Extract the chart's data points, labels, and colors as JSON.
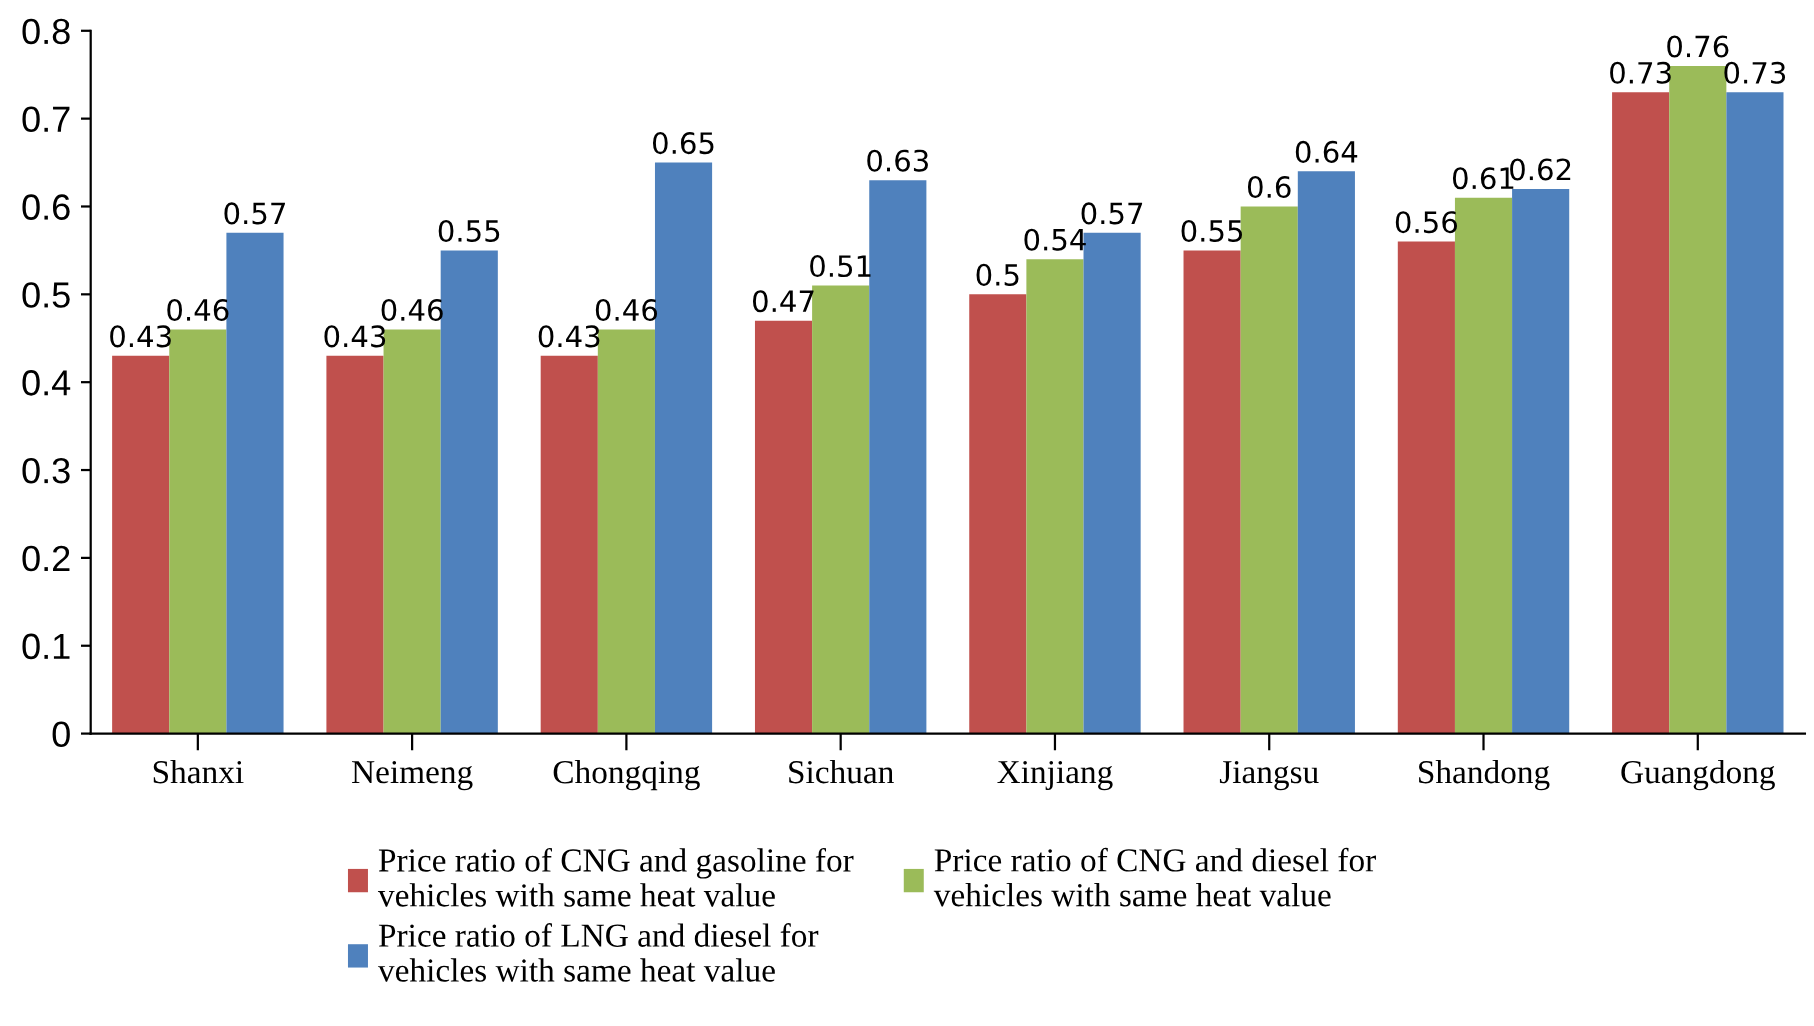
{
  "chart_data": {
    "type": "bar",
    "categories": [
      "Shanxi",
      "Neimeng",
      "Chongqing",
      "Sichuan",
      "Xinjiang",
      "Jiangsu",
      "Shandong",
      "Guangdong"
    ],
    "series": [
      {
        "name": "Price ratio of CNG and gasoline for\nvehicles with same heat value",
        "color": "#c0504d",
        "values": [
          0.43,
          0.43,
          0.43,
          0.47,
          0.5,
          0.55,
          0.56,
          0.73
        ]
      },
      {
        "name": "Price ratio of CNG and diesel for\nvehicles with same heat value",
        "color": "#9bbb59",
        "values": [
          0.46,
          0.46,
          0.46,
          0.51,
          0.54,
          0.6,
          0.61,
          0.76
        ]
      },
      {
        "name": "Price ratio of LNG and diesel for\nvehicles with same heat value",
        "color": "#4f81bd",
        "values": [
          0.57,
          0.55,
          0.65,
          0.63,
          0.57,
          0.64,
          0.62,
          0.73
        ]
      }
    ],
    "ylim": [
      0,
      0.8
    ],
    "yticks": [
      0,
      0.1,
      0.2,
      0.3,
      0.4,
      0.5,
      0.6,
      0.7,
      0.8
    ],
    "data_labels": true,
    "grid": false,
    "legend": "bottom"
  }
}
